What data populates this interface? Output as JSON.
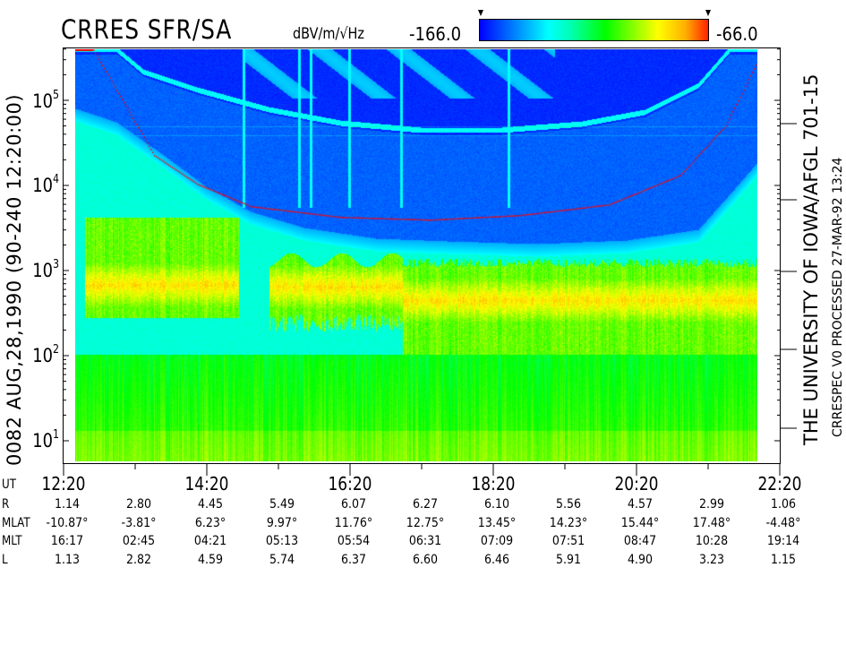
{
  "header": {
    "title": "CRRES SFR/SA",
    "units": "dBV/m/√Hz",
    "colorbar_min_label": "-166.0",
    "colorbar_max_label": "-66.0"
  },
  "left_label": "0082   AUG,28,1990   (90-240 12:20:00)",
  "right_labels": {
    "institution": "THE UNIVERSITY OF IOWA/AFGL 701-15",
    "processing": "CRRESPEC V0    PROCESSED 27-MAR-92   13:24"
  },
  "chart_data": {
    "type": "heatmap",
    "title": "CRRES SFR/SA",
    "colorbar": {
      "label": "dBV/m/√Hz",
      "min": -166.0,
      "max": -66.0,
      "colors": [
        "#0000ff",
        "#00ffff",
        "#00ff00",
        "#ffff00",
        "#ff3000"
      ]
    },
    "y_axis": {
      "scale": "log",
      "range": [
        5.7,
        400000
      ],
      "ticks": [
        {
          "base": "10",
          "exp": "1"
        },
        {
          "base": "10",
          "exp": "2"
        },
        {
          "base": "10",
          "exp": "3"
        },
        {
          "base": "10",
          "exp": "4"
        },
        {
          "base": "10",
          "exp": "5"
        }
      ]
    },
    "x_axis": {
      "label": "UT",
      "range": [
        "12:20",
        "22:20"
      ],
      "ticks": [
        "12:20",
        "14:20",
        "16:20",
        "18:20",
        "20:20",
        "22:20"
      ]
    },
    "overlay_curve_color": "#ff0000"
  },
  "ephemeris": {
    "rows": [
      {
        "label": "R",
        "values": [
          "1.14",
          "2.80",
          "4.45",
          "5.49",
          "6.07",
          "6.27",
          "6.10",
          "5.56",
          "4.57",
          "2.99",
          "1.06"
        ]
      },
      {
        "label": "MLAT",
        "values": [
          "-10.87°",
          "-3.81°",
          "6.23°",
          "9.97°",
          "11.76°",
          "12.75°",
          "13.45°",
          "14.23°",
          "15.44°",
          "17.48°",
          "-4.48°"
        ]
      },
      {
        "label": "MLT",
        "values": [
          "16:17",
          "02:45",
          "04:21",
          "05:13",
          "05:54",
          "06:31",
          "07:09",
          "07:51",
          "08:47",
          "10:28",
          "19:14"
        ]
      },
      {
        "label": "L",
        "values": [
          "1.13",
          "2.82",
          "4.59",
          "5.74",
          "6.37",
          "6.60",
          "6.46",
          "5.91",
          "4.90",
          "3.23",
          "1.15"
        ]
      }
    ]
  }
}
